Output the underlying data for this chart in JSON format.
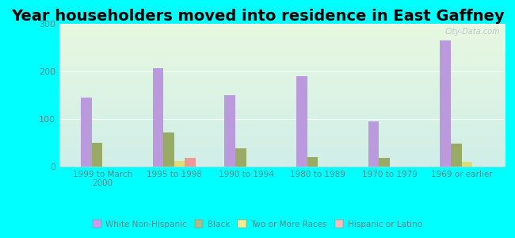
{
  "title": "Year householders moved into residence in East Gaffney",
  "categories": [
    "1999 to March\n2000",
    "1995 to 1998",
    "1990 to 1994",
    "1980 to 1989",
    "1970 to 1979",
    "1969 or earlier"
  ],
  "series": {
    "White Non-Hispanic": [
      145,
      207,
      150,
      190,
      95,
      265
    ],
    "Black": [
      50,
      72,
      38,
      20,
      18,
      48
    ],
    "Two or More Races": [
      0,
      12,
      0,
      0,
      0,
      10
    ],
    "Hispanic or Latino": [
      0,
      18,
      0,
      0,
      0,
      0
    ]
  },
  "colors": {
    "White Non-Hispanic": "#bb99dd",
    "Black": "#99aa66",
    "Two or More Races": "#dddd77",
    "Hispanic or Latino": "#ee9999"
  },
  "ylim": [
    0,
    300
  ],
  "yticks": [
    0,
    100,
    200,
    300
  ],
  "plot_bg_top": "#d0eee8",
  "plot_bg_bottom": "#e8f8e0",
  "outer_background": "#00ffff",
  "watermark": "City-Data.com",
  "title_fontsize": 14,
  "bar_width": 0.15,
  "tick_color": "#558888",
  "legend_entries": [
    "White Non-Hispanic",
    "Black",
    "Two or More Races",
    "Hispanic or Latino"
  ],
  "legend_colors": [
    "#cc99ee",
    "#aabb88",
    "#eeee99",
    "#ffbbbb"
  ]
}
